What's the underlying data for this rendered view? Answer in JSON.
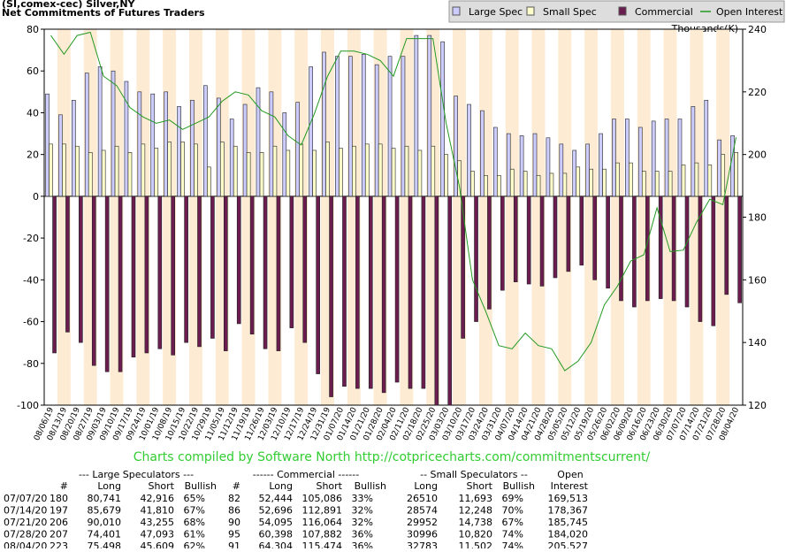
{
  "chart_data": {
    "type": "bar",
    "title": "(SI,comex-cec) Silver,NY",
    "subtitle": "Net Commitments of Futures Traders",
    "y2_label": "Thousands(K)",
    "footer": "Charts compiled by Software North  http://cotpricecharts.com/commitmentscurrent/",
    "legend": "top-right",
    "grid": false,
    "categories": [
      "08/06/19",
      "08/13/19",
      "08/20/19",
      "08/27/19",
      "09/03/19",
      "09/10/19",
      "09/17/19",
      "09/24/19",
      "10/01/19",
      "10/08/19",
      "10/15/19",
      "10/22/19",
      "10/29/19",
      "11/05/19",
      "11/12/19",
      "11/19/19",
      "11/26/19",
      "12/03/19",
      "12/10/19",
      "12/17/19",
      "12/24/19",
      "12/31/19",
      "01/07/20",
      "01/14/20",
      "01/21/20",
      "01/28/20",
      "02/04/20",
      "02/11/20",
      "02/18/20",
      "02/25/20",
      "03/03/20",
      "03/10/20",
      "03/17/20",
      "03/24/20",
      "03/31/20",
      "04/07/20",
      "04/14/20",
      "04/21/20",
      "04/28/20",
      "05/05/20",
      "05/12/20",
      "05/19/20",
      "05/26/20",
      "06/02/20",
      "06/09/20",
      "06/16/20",
      "06/23/20",
      "06/30/20",
      "07/07/20",
      "07/14/20",
      "07/21/20",
      "07/28/20",
      "08/04/20"
    ],
    "series": [
      {
        "name": "Large Spec",
        "color": "#ccccff",
        "values": [
          49,
          39,
          46,
          59,
          62,
          60,
          55,
          50,
          49,
          50,
          43,
          46,
          53,
          47,
          37,
          44,
          52,
          50,
          40,
          45,
          62,
          69,
          67,
          67,
          68,
          63,
          67,
          67,
          77,
          77,
          74,
          48,
          44,
          41,
          33,
          30,
          29,
          30,
          28,
          25,
          22,
          25,
          30,
          37,
          37,
          33,
          36,
          37,
          37,
          43,
          46,
          27,
          29
        ]
      },
      {
        "name": "Small Spec",
        "color": "#ffffcc",
        "values": [
          25,
          25,
          24,
          21,
          22,
          24,
          21,
          25,
          23,
          26,
          26,
          25,
          14,
          26,
          24,
          21,
          21,
          24,
          22,
          25,
          22,
          26,
          23,
          24,
          25,
          25,
          23,
          24,
          22,
          24,
          20,
          17,
          12,
          10,
          10,
          13,
          12,
          10,
          11,
          11,
          14,
          13,
          13,
          16,
          16,
          12,
          12,
          12,
          15,
          16,
          15,
          20,
          21
        ]
      },
      {
        "name": "Commercial",
        "color": "#6b1d4f",
        "values": [
          -75,
          -65,
          -70,
          -81,
          -84,
          -84,
          -77,
          -75,
          -73,
          -76,
          -70,
          -72,
          -68,
          -74,
          -61,
          -66,
          -73,
          -74,
          -63,
          -70,
          -85,
          -96,
          -91,
          -92,
          -92,
          -94,
          -89,
          -92,
          -92,
          -100,
          -100,
          -68,
          -60,
          -54,
          -45,
          -41,
          -42,
          -43,
          -39,
          -36,
          -33,
          -40,
          -44,
          -50,
          -53,
          -50,
          -49,
          -50,
          -53,
          -60,
          -62,
          -47,
          -51
        ]
      },
      {
        "name": "Open Interest",
        "color": "#229922",
        "type": "line",
        "axis": "y2",
        "values": [
          238,
          232,
          238,
          239,
          225,
          222,
          215,
          212,
          210,
          211,
          208,
          210,
          212,
          217,
          220,
          219,
          214,
          212,
          206,
          203,
          213,
          225,
          233,
          233,
          232,
          230,
          225,
          237,
          237,
          237,
          210,
          190,
          160,
          150,
          139,
          138,
          143,
          139,
          138,
          131,
          134,
          140,
          152,
          158,
          166,
          168,
          183,
          169,
          169.5,
          178.4,
          185.7,
          184.0,
          205.5
        ]
      }
    ],
    "ylim": [
      -100,
      80
    ],
    "yticks": [
      -100,
      -80,
      -60,
      -40,
      -20,
      0,
      20,
      40,
      60,
      80
    ],
    "y2lim": [
      120,
      240
    ],
    "y2ticks": [
      120,
      140,
      160,
      180,
      200,
      220,
      240
    ]
  },
  "table": {
    "group_headers": [
      "--- Large Speculators ---",
      "------ Commercial ------",
      "-- Small Speculators --",
      "Open"
    ],
    "headers": [
      "#",
      "Long",
      "Short",
      "Bullish",
      "#",
      "Long",
      "Short",
      "Bullish",
      "Long",
      "Short",
      "Bullish",
      "Interest"
    ],
    "rows": [
      [
        "07/07/20",
        "180",
        "80,741",
        "42,916",
        "65%",
        "82",
        "52,444",
        "105,086",
        "33%",
        "26510",
        "11,693",
        "69%",
        "169,513"
      ],
      [
        "07/14/20",
        "197",
        "85,679",
        "41,810",
        "67%",
        "86",
        "52,696",
        "112,891",
        "32%",
        "28574",
        "12,248",
        "70%",
        "178,367"
      ],
      [
        "07/21/20",
        "206",
        "90,010",
        "43,255",
        "68%",
        "90",
        "54,095",
        "116,064",
        "32%",
        "29952",
        "14,738",
        "67%",
        "185,745"
      ],
      [
        "07/28/20",
        "207",
        "74,401",
        "47,093",
        "61%",
        "95",
        "60,398",
        "107,882",
        "36%",
        "30996",
        "10,820",
        "74%",
        "184,020"
      ],
      [
        "08/04/20",
        "223",
        "75,498",
        "45,609",
        "62%",
        "91",
        "64,304",
        "115,474",
        "36%",
        "32783",
        "11,502",
        "74%",
        "205,527"
      ]
    ]
  }
}
